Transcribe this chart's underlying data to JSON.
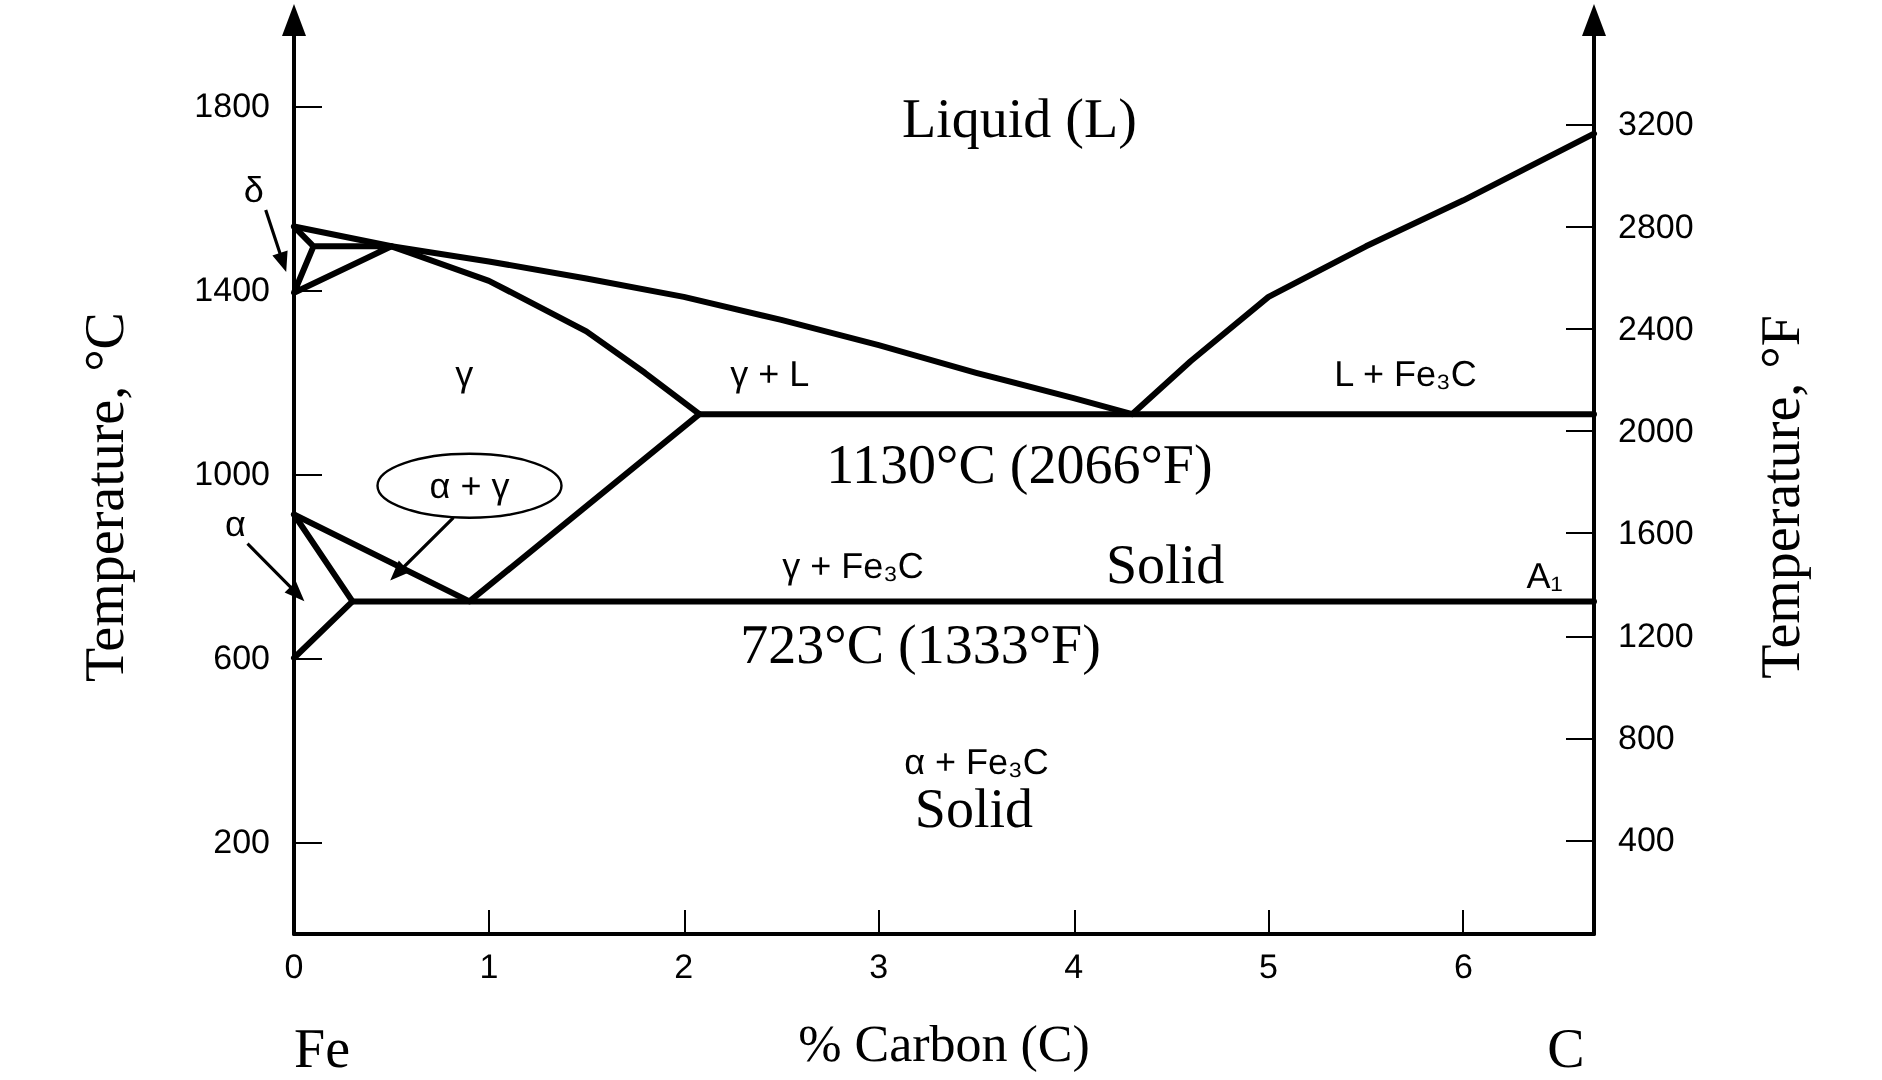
{
  "chart_data": {
    "type": "line",
    "xlabel": "% Carbon (C)",
    "ylabel": "Temperature, °C",
    "y2label": "Temperature, °F",
    "xlim": [
      0,
      6.67
    ],
    "xticks": [
      0,
      1,
      2,
      3,
      4,
      5,
      6
    ],
    "ylim": [
      0,
      1900
    ],
    "yticks": [
      200,
      600,
      1000,
      1400,
      1800
    ],
    "y2lim": [
      32,
      3452
    ],
    "y2ticks": [
      400,
      800,
      1200,
      1600,
      2000,
      2400,
      2800,
      3200
    ],
    "grid": false,
    "marker": "none",
    "line_style": "solid",
    "series": [
      {
        "color": "#000000",
        "x": [
          0,
          0.5,
          1,
          1.5,
          2,
          2.5,
          3,
          3.5,
          4,
          4.3,
          4.6,
          5,
          5.5,
          6,
          6.67
        ],
        "values": [
          1538,
          1495,
          1462,
          1425,
          1385,
          1335,
          1280,
          1220,
          1165,
          1130,
          1245,
          1385,
          1495,
          1595,
          1740
        ]
      },
      {
        "color": "#000000",
        "x": [
          0.5,
          1,
          1.5,
          1.8,
          2.08,
          6.67
        ],
        "values": [
          1495,
          1420,
          1310,
          1220,
          1130,
          1130
        ]
      },
      {
        "color": "#000000",
        "x": [
          0,
          0.1,
          0.5,
          0,
          0.1
        ],
        "values": [
          1538,
          1495,
          1495,
          1394,
          1495
        ]
      },
      {
        "color": "#000000",
        "x": [
          0,
          0.9,
          2.08
        ],
        "values": [
          912,
          723,
          1130
        ]
      },
      {
        "color": "#000000",
        "x": [
          0,
          0.3,
          0
        ],
        "values": [
          912,
          723,
          600
        ]
      },
      {
        "color": "#000000",
        "x": [
          0.3,
          6.67
        ],
        "values": [
          723,
          723
        ]
      }
    ],
    "annotations": [
      "Fe",
      "C",
      "Liquid (L)",
      "δ",
      "γ",
      "γ + L",
      "L + Fe₃C",
      "1130°C (2066°F)",
      "α + γ",
      "α",
      "γ + Fe₃C",
      "Solid",
      "A₁",
      "723°C (1333°F)",
      "α + Fe₃C",
      "Solid"
    ]
  }
}
